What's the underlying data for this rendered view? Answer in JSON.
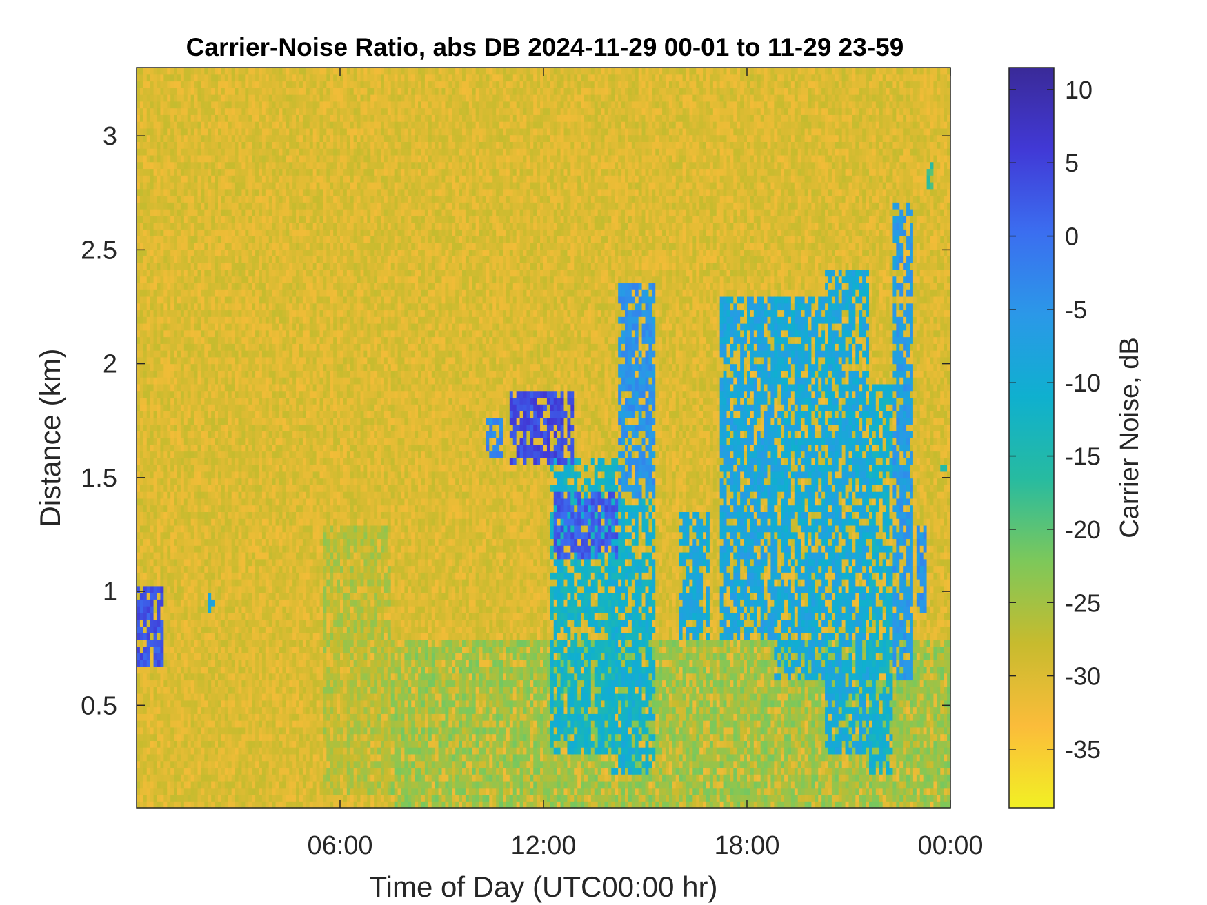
{
  "chart_data": {
    "type": "heatmap",
    "title": "Carrier-Noise Ratio, abs DB 2024-11-29 00-01 to 11-29 23-59",
    "xlabel": "Time of Day (UTC00:00 hr)",
    "ylabel": "Distance (km)",
    "x_unit": "hours since 00:00 UTC",
    "xlim": [
      0,
      24
    ],
    "ylim": [
      0.05,
      3.3
    ],
    "x_ticks": [
      {
        "value": 6,
        "label": "06:00"
      },
      {
        "value": 12,
        "label": "12:00"
      },
      {
        "value": 18,
        "label": "18:00"
      },
      {
        "value": 24,
        "label": "00:00"
      }
    ],
    "y_ticks": [
      {
        "value": 0.5,
        "label": "0.5"
      },
      {
        "value": 1,
        "label": "1"
      },
      {
        "value": 1.5,
        "label": "1.5"
      },
      {
        "value": 2,
        "label": "2"
      },
      {
        "value": 2.5,
        "label": "2.5"
      },
      {
        "value": 3,
        "label": "3"
      }
    ],
    "colorbar": {
      "label": "Carrier Noise, dB",
      "range": [
        -39,
        11.5
      ],
      "ticks": [
        10,
        5,
        0,
        -5,
        -10,
        -15,
        -20,
        -25,
        -30,
        -35
      ],
      "tick_labels": [
        "10",
        "5",
        "0",
        "-5",
        "-10",
        "-15",
        "-20",
        "-25",
        "-30",
        "-35"
      ],
      "colors": [
        "#f2f024",
        "#fbbc3a",
        "#c7bb2e",
        "#7dc85a",
        "#27bba0",
        "#0fb0cf",
        "#2b98e8",
        "#3b6ef0",
        "#4139d6",
        "#3a2a98"
      ]
    },
    "background_value": -30,
    "regions": [
      {
        "t0": 0.05,
        "t1": 0.75,
        "d0": 0.68,
        "d1": 1.02,
        "value": 3
      },
      {
        "t0": 2.1,
        "t1": 2.25,
        "d0": 0.92,
        "d1": 1.0,
        "value": -10
      },
      {
        "t0": 10.3,
        "t1": 10.8,
        "d0": 1.6,
        "d1": 1.75,
        "value": -3
      },
      {
        "t0": 11.0,
        "t1": 12.9,
        "d0": 1.55,
        "d1": 1.88,
        "value": 4
      },
      {
        "t0": 12.3,
        "t1": 14.2,
        "d0": 1.15,
        "d1": 1.45,
        "value": 2
      },
      {
        "t0": 12.2,
        "t1": 14.2,
        "d0": 0.3,
        "d1": 1.6,
        "value": -12
      },
      {
        "t0": 14.2,
        "t1": 15.3,
        "d0": 1.4,
        "d1": 2.35,
        "value": -5
      },
      {
        "t0": 14.0,
        "t1": 15.3,
        "d0": 0.2,
        "d1": 1.4,
        "value": -11
      },
      {
        "t0": 16.0,
        "t1": 16.9,
        "d0": 0.8,
        "d1": 1.35,
        "value": -9
      },
      {
        "t0": 17.2,
        "t1": 18.8,
        "d0": 0.8,
        "d1": 2.3,
        "value": -8
      },
      {
        "t0": 18.8,
        "t1": 20.3,
        "d0": 0.6,
        "d1": 2.3,
        "value": -9
      },
      {
        "t0": 20.3,
        "t1": 21.6,
        "d0": 0.3,
        "d1": 2.4,
        "value": -9
      },
      {
        "t0": 21.6,
        "t1": 22.3,
        "d0": 0.2,
        "d1": 1.9,
        "value": -11
      },
      {
        "t0": 22.3,
        "t1": 22.9,
        "d0": 0.6,
        "d1": 2.7,
        "value": -6
      },
      {
        "t0": 23.0,
        "t1": 23.3,
        "d0": 0.9,
        "d1": 1.3,
        "value": -5
      },
      {
        "t0": 23.35,
        "t1": 23.5,
        "d0": 2.78,
        "d1": 2.9,
        "value": -18
      },
      {
        "t0": 23.7,
        "t1": 23.85,
        "d0": 1.52,
        "d1": 1.58,
        "value": -14
      },
      {
        "t0": 5.5,
        "t1": 7.5,
        "d0": 0.1,
        "d1": 1.3,
        "value": -26
      },
      {
        "t0": 7.5,
        "t1": 24,
        "d0": 0.05,
        "d1": 0.8,
        "value": -24
      }
    ]
  }
}
